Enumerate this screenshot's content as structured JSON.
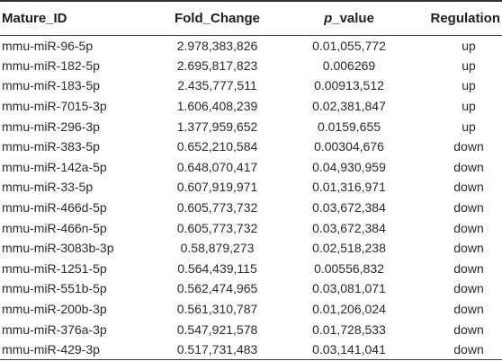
{
  "table": {
    "headers": {
      "mature_id": "Mature_ID",
      "fold_change": "Fold_Change",
      "p_italic": "p",
      "p_rest": "_value",
      "regulation": "Regulation"
    },
    "rows": [
      {
        "id": "mmu-miR-96-5p",
        "fc": "2.978,383,826",
        "pv": "0.01,055,772",
        "reg": "up"
      },
      {
        "id": "mmu-miR-182-5p",
        "fc": "2.695,817,823",
        "pv": "0.006269",
        "reg": "up"
      },
      {
        "id": "mmu-miR-183-5p",
        "fc": "2.435,777,511",
        "pv": "0.00913,512",
        "reg": "up"
      },
      {
        "id": "mmu-miR-7015-3p",
        "fc": "1.606,408,239",
        "pv": "0.02,381,847",
        "reg": "up"
      },
      {
        "id": "mmu-miR-296-3p",
        "fc": "1.377,959,652",
        "pv": "0.0159,655",
        "reg": "up"
      },
      {
        "id": "mmu-miR-383-5p",
        "fc": "0.652,210,584",
        "pv": "0.00304,676",
        "reg": "down"
      },
      {
        "id": "mmu-miR-142a-5p",
        "fc": "0.648,070,417",
        "pv": "0.04,930,959",
        "reg": "down"
      },
      {
        "id": "mmu-miR-33-5p",
        "fc": "0.607,919,971",
        "pv": "0.01,316,971",
        "reg": "down"
      },
      {
        "id": "mmu-miR-466d-5p",
        "fc": "0.605,773,732",
        "pv": "0.03,672,384",
        "reg": "down"
      },
      {
        "id": "mmu-miR-466n-5p",
        "fc": "0.605,773,732",
        "pv": "0.03,672,384",
        "reg": "down"
      },
      {
        "id": "mmu-miR-3083b-3p",
        "fc": "0.58,879,273",
        "pv": "0.02,518,238",
        "reg": "down"
      },
      {
        "id": "mmu-miR-1251-5p",
        "fc": "0.564,439,115",
        "pv": "0.00556,832",
        "reg": "down"
      },
      {
        "id": "mmu-miR-551b-5p",
        "fc": "0.562,474,965",
        "pv": "0.03,081,071",
        "reg": "down"
      },
      {
        "id": "mmu-miR-200b-3p",
        "fc": "0.561,310,787",
        "pv": "0.01,206,024",
        "reg": "down"
      },
      {
        "id": "mmu-miR-376a-3p",
        "fc": "0.547,921,578",
        "pv": "0.01,728,533",
        "reg": "down"
      },
      {
        "id": "mmu-miR-429-3p",
        "fc": "0.517,731,483",
        "pv": "0.03,141,041",
        "reg": "down"
      }
    ]
  }
}
